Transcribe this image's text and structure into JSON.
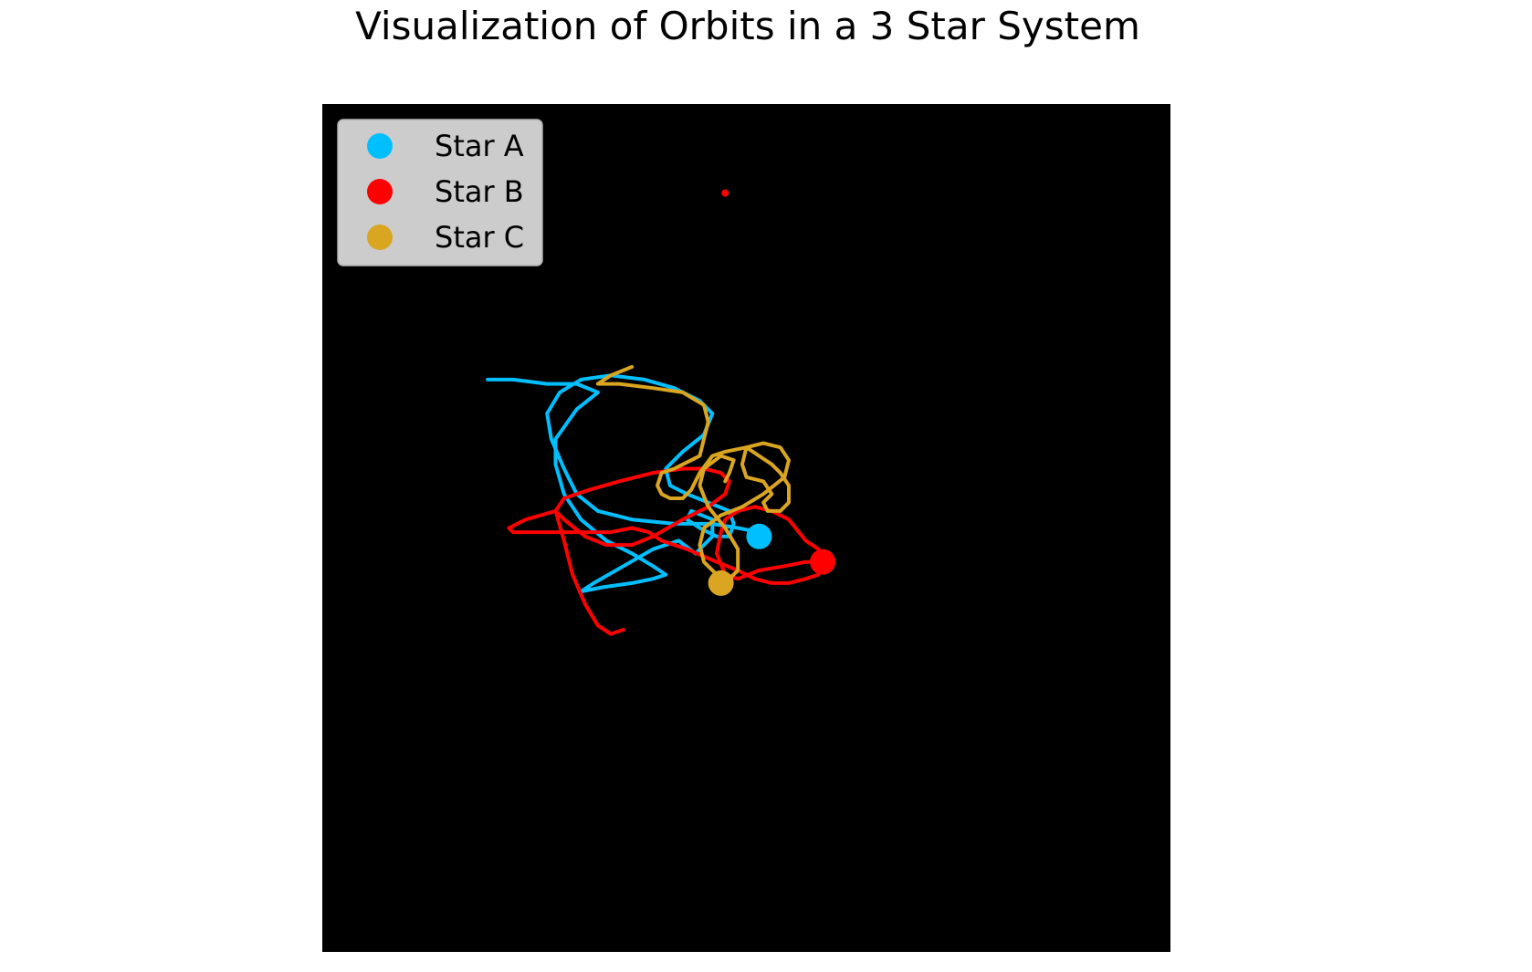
{
  "chart_data": {
    "type": "line",
    "title": "Visualization of Orbits in a 3 Star System",
    "xlabel": "",
    "ylabel": "",
    "axes_visible": false,
    "background": "#000000",
    "legend_placement": "upper-left",
    "xlim": [
      -1,
      1
    ],
    "ylim": [
      -1,
      1
    ],
    "series": [
      {
        "name": "Star A",
        "color": "#00bfff",
        "trail": [
          [
            -0.61,
            0.35
          ],
          [
            -0.55,
            0.35
          ],
          [
            -0.47,
            0.34
          ],
          [
            -0.4,
            0.34
          ],
          [
            -0.35,
            0.32
          ],
          [
            -0.4,
            0.28
          ],
          [
            -0.45,
            0.21
          ],
          [
            -0.45,
            0.15
          ],
          [
            -0.43,
            0.08
          ],
          [
            -0.39,
            0.02
          ],
          [
            -0.33,
            -0.03
          ],
          [
            -0.27,
            -0.06
          ],
          [
            -0.22,
            -0.09
          ],
          [
            -0.19,
            -0.11
          ],
          [
            -0.22,
            -0.12
          ],
          [
            -0.27,
            -0.13
          ],
          [
            -0.34,
            -0.14
          ],
          [
            -0.39,
            -0.15
          ],
          [
            -0.36,
            -0.13
          ],
          [
            -0.29,
            -0.09
          ],
          [
            -0.22,
            -0.05
          ],
          [
            -0.16,
            -0.03
          ],
          [
            -0.12,
            -0.06
          ],
          [
            -0.1,
            -0.04
          ],
          [
            -0.08,
            -0.02
          ],
          [
            -0.08,
            0.02
          ],
          [
            -0.13,
            0.04
          ],
          [
            -0.14,
            0.02
          ],
          [
            -0.11,
            0.0
          ],
          [
            -0.07,
            -0.02
          ],
          [
            -0.04,
            -0.02
          ],
          [
            -0.03,
            0.01
          ],
          [
            -0.04,
            0.04
          ],
          [
            -0.09,
            0.06
          ],
          [
            -0.14,
            0.08
          ],
          [
            -0.18,
            0.1
          ],
          [
            -0.19,
            0.14
          ],
          [
            -0.15,
            0.18
          ],
          [
            -0.1,
            0.22
          ],
          [
            -0.08,
            0.27
          ],
          [
            -0.11,
            0.3
          ],
          [
            -0.17,
            0.33
          ],
          [
            -0.24,
            0.35
          ],
          [
            -0.32,
            0.36
          ],
          [
            -0.39,
            0.35
          ],
          [
            -0.44,
            0.32
          ],
          [
            -0.47,
            0.27
          ],
          [
            -0.46,
            0.21
          ],
          [
            -0.43,
            0.14
          ],
          [
            -0.4,
            0.08
          ],
          [
            -0.35,
            0.04
          ],
          [
            -0.27,
            0.02
          ],
          [
            -0.17,
            0.01
          ],
          [
            -0.08,
            0.01
          ],
          [
            -0.02,
            0.0
          ],
          [
            0.03,
            -0.01
          ],
          [
            0.05,
            -0.01
          ]
        ],
        "current": [
          0.03,
          -0.02
        ]
      },
      {
        "name": "Star B",
        "color": "#ff0000",
        "trail": [
          [
            -0.29,
            -0.24
          ],
          [
            -0.32,
            -0.25
          ],
          [
            -0.35,
            -0.23
          ],
          [
            -0.38,
            -0.18
          ],
          [
            -0.41,
            -0.11
          ],
          [
            -0.43,
            -0.03
          ],
          [
            -0.45,
            0.04
          ],
          [
            -0.43,
            0.07
          ],
          [
            -0.37,
            0.09
          ],
          [
            -0.3,
            0.11
          ],
          [
            -0.22,
            0.13
          ],
          [
            -0.15,
            0.14
          ],
          [
            -0.1,
            0.14
          ],
          [
            -0.06,
            0.13
          ],
          [
            -0.04,
            0.11
          ],
          [
            -0.05,
            0.08
          ],
          [
            -0.09,
            0.05
          ],
          [
            -0.15,
            0.02
          ],
          [
            -0.22,
            -0.02
          ],
          [
            -0.27,
            -0.04
          ],
          [
            -0.33,
            -0.04
          ],
          [
            -0.38,
            -0.02
          ],
          [
            -0.43,
            0.02
          ],
          [
            -0.45,
            0.04
          ],
          [
            -0.52,
            0.02
          ],
          [
            -0.56,
            0.0
          ],
          [
            -0.55,
            -0.01
          ],
          [
            -0.48,
            -0.01
          ],
          [
            -0.4,
            -0.01
          ],
          [
            -0.32,
            -0.01
          ],
          [
            -0.27,
            0.0
          ],
          [
            -0.23,
            -0.01
          ],
          [
            -0.2,
            -0.03
          ],
          [
            -0.14,
            -0.05
          ],
          [
            -0.07,
            -0.08
          ],
          [
            -0.02,
            -0.1
          ],
          [
            0.02,
            -0.12
          ],
          [
            0.06,
            -0.13
          ],
          [
            0.1,
            -0.13
          ],
          [
            0.14,
            -0.12
          ],
          [
            0.17,
            -0.11
          ],
          [
            0.18,
            -0.08
          ],
          [
            0.17,
            -0.05
          ],
          [
            0.14,
            -0.03
          ],
          [
            0.1,
            0.02
          ],
          [
            0.06,
            0.04
          ],
          [
            0.02,
            0.05
          ],
          [
            -0.02,
            0.04
          ],
          [
            -0.05,
            0.02
          ],
          [
            -0.06,
            -0.01
          ],
          [
            -0.07,
            -0.06
          ],
          [
            -0.05,
            -0.11
          ],
          [
            -0.02,
            -0.12
          ],
          [
            0.03,
            -0.1
          ],
          [
            0.09,
            -0.09
          ],
          [
            0.14,
            -0.08
          ],
          [
            0.17,
            -0.08
          ]
        ],
        "current": [
          0.18,
          -0.08
        ]
      },
      {
        "name": "Star C",
        "color": "#daa520",
        "trail": [
          [
            -0.27,
            0.38
          ],
          [
            -0.32,
            0.36
          ],
          [
            -0.35,
            0.34
          ],
          [
            -0.3,
            0.34
          ],
          [
            -0.22,
            0.33
          ],
          [
            -0.15,
            0.32
          ],
          [
            -0.1,
            0.29
          ],
          [
            -0.09,
            0.25
          ],
          [
            -0.1,
            0.21
          ],
          [
            -0.11,
            0.17
          ],
          [
            -0.13,
            0.16
          ],
          [
            -0.17,
            0.14
          ],
          [
            -0.2,
            0.13
          ],
          [
            -0.21,
            0.1
          ],
          [
            -0.2,
            0.08
          ],
          [
            -0.18,
            0.07
          ],
          [
            -0.15,
            0.07
          ],
          [
            -0.13,
            0.09
          ],
          [
            -0.11,
            0.13
          ],
          [
            -0.08,
            0.17
          ],
          [
            -0.05,
            0.18
          ],
          [
            0.0,
            0.19
          ],
          [
            0.03,
            0.17
          ],
          [
            0.06,
            0.15
          ],
          [
            0.08,
            0.13
          ],
          [
            0.1,
            0.1
          ],
          [
            0.1,
            0.06
          ],
          [
            0.08,
            0.04
          ],
          [
            0.05,
            0.04
          ],
          [
            0.04,
            0.06
          ],
          [
            0.06,
            0.08
          ],
          [
            0.04,
            0.11
          ],
          [
            0.0,
            0.12
          ],
          [
            -0.01,
            0.15
          ],
          [
            0.0,
            0.19
          ],
          [
            0.04,
            0.2
          ],
          [
            0.08,
            0.19
          ],
          [
            0.1,
            0.16
          ],
          [
            0.09,
            0.12
          ],
          [
            0.04,
            0.08
          ],
          [
            -0.01,
            0.05
          ],
          [
            -0.06,
            0.03
          ],
          [
            -0.1,
            0.0
          ],
          [
            -0.11,
            -0.04
          ],
          [
            -0.1,
            -0.08
          ],
          [
            -0.07,
            -0.11
          ],
          [
            -0.04,
            -0.12
          ],
          [
            -0.02,
            -0.1
          ],
          [
            -0.02,
            -0.05
          ],
          [
            -0.05,
            0.0
          ],
          [
            -0.09,
            0.05
          ],
          [
            -0.11,
            0.1
          ],
          [
            -0.1,
            0.14
          ],
          [
            -0.06,
            0.17
          ],
          [
            -0.03,
            0.16
          ],
          [
            -0.04,
            0.13
          ],
          [
            -0.05,
            0.11
          ]
        ],
        "current": [
          -0.06,
          -0.13
        ]
      }
    ],
    "stray_points": [
      {
        "color": "#ff0000",
        "x": -0.05,
        "y": 0.79
      }
    ]
  }
}
